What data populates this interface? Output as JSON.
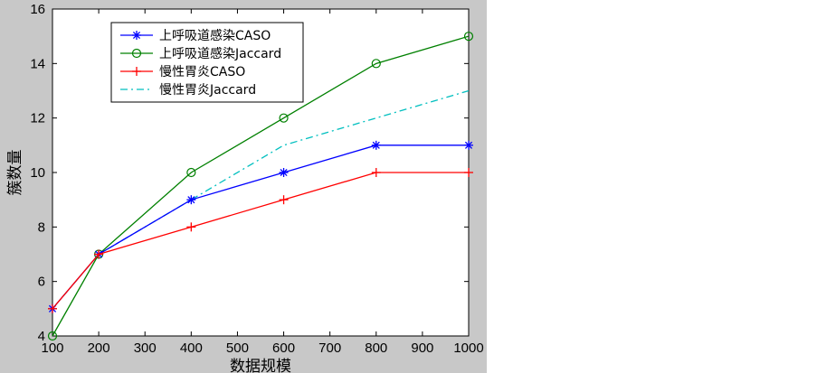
{
  "chart_data": {
    "type": "line",
    "title": "",
    "xlabel": "数据规模",
    "ylabel": "簇数量",
    "xlim": [
      100,
      1000
    ],
    "ylim": [
      4,
      16
    ],
    "xticks": [
      100,
      200,
      300,
      400,
      500,
      600,
      700,
      800,
      900,
      1000
    ],
    "yticks": [
      4,
      6,
      8,
      10,
      12,
      14,
      16
    ],
    "grid": false,
    "legend_position": "top-left",
    "series": [
      {
        "name": "上呼吸道感染CASO",
        "color": "#0000ff",
        "linestyle": "solid",
        "marker": "asterisk",
        "x": [
          100,
          200,
          400,
          600,
          800,
          1000
        ],
        "y": [
          5,
          7,
          9,
          10,
          11,
          11
        ]
      },
      {
        "name": "上呼吸道感染Jaccard",
        "color": "#008000",
        "linestyle": "solid",
        "marker": "circle",
        "x": [
          100,
          200,
          400,
          600,
          800,
          1000
        ],
        "y": [
          4,
          7,
          10,
          12,
          14,
          15
        ]
      },
      {
        "name": "慢性胃炎CASO",
        "color": "#ff0000",
        "linestyle": "solid",
        "marker": "plus",
        "x": [
          100,
          200,
          400,
          600,
          800,
          1000
        ],
        "y": [
          5,
          7,
          8,
          9,
          10,
          10
        ]
      },
      {
        "name": "慢性胃炎Jaccard",
        "color": "#00bfbf",
        "linestyle": "dashdot",
        "marker": "none",
        "x": [
          100,
          200,
          400,
          600,
          800,
          1000
        ],
        "y": [
          5,
          7,
          9,
          11,
          12,
          13
        ]
      }
    ]
  }
}
